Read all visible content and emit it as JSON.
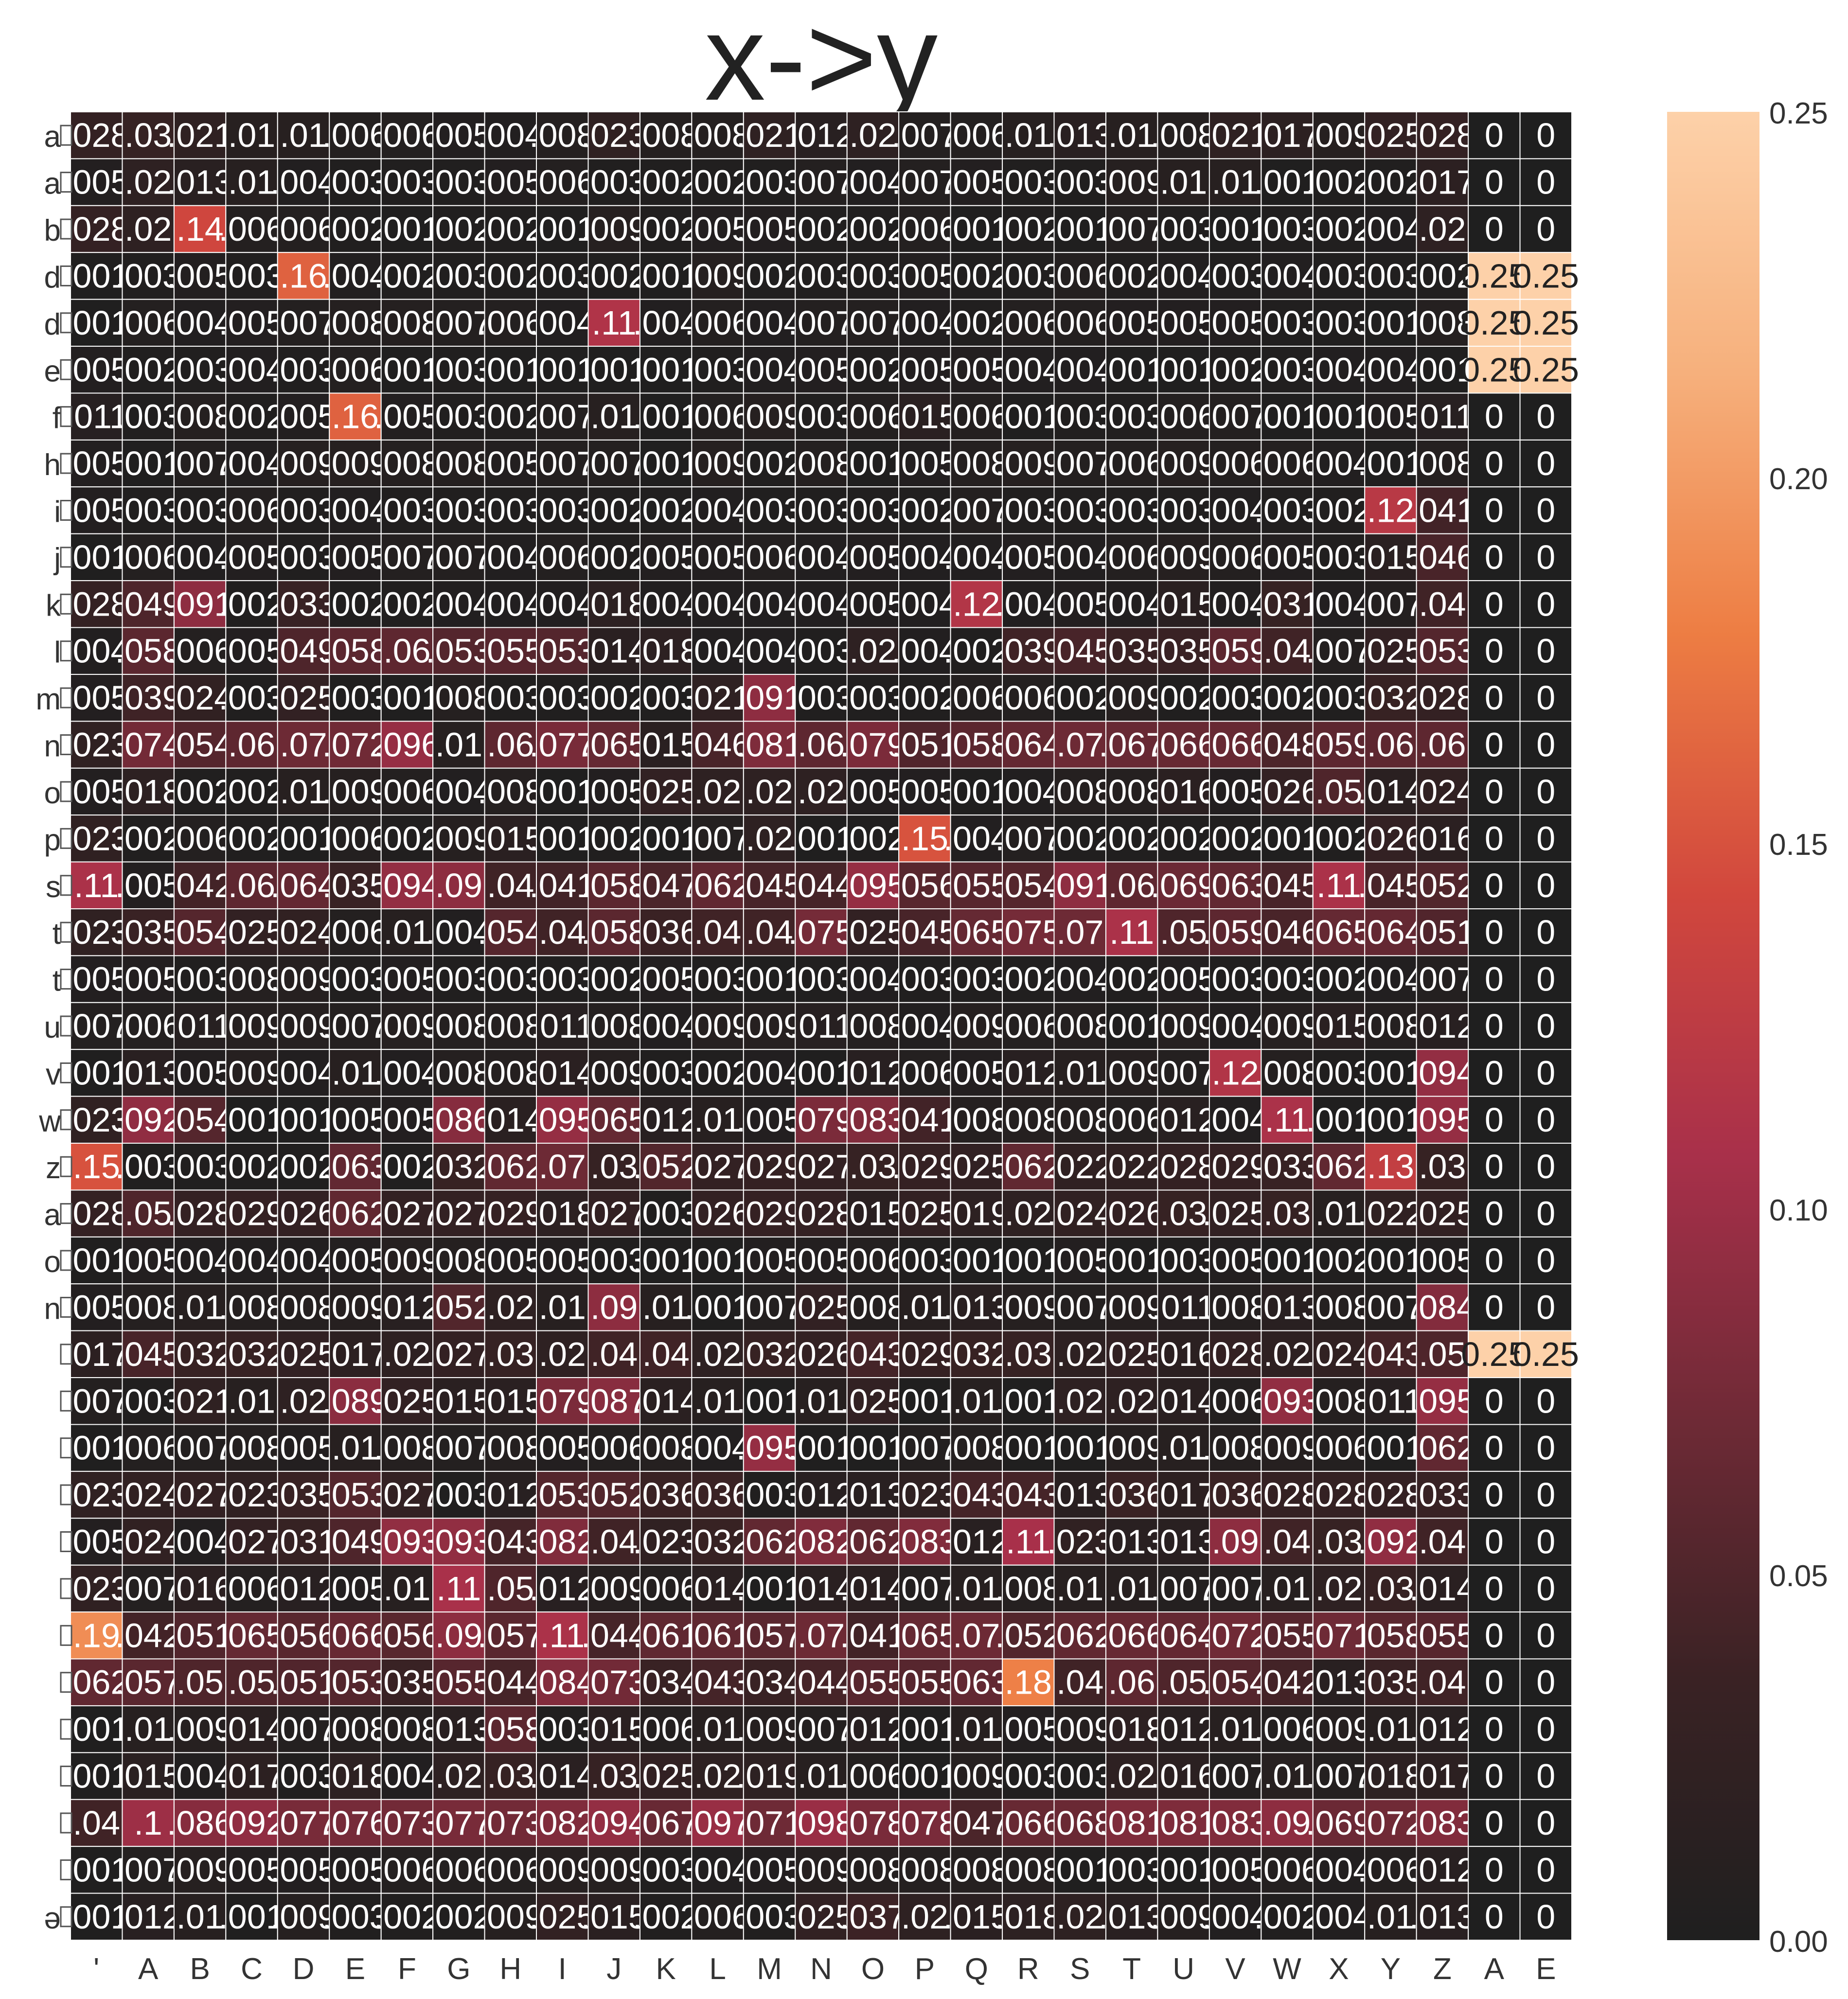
{
  "chart_data": {
    "type": "heatmap",
    "title": "x->y",
    "xlabel": "",
    "ylabel": "",
    "columns": [
      "'",
      "A",
      "B",
      "C",
      "D",
      "E",
      "F",
      "G",
      "H",
      "I",
      "J",
      "K",
      "L",
      "M",
      "N",
      "O",
      "P",
      "Q",
      "R",
      "S",
      "T",
      "U",
      "V",
      "W",
      "X",
      "Y",
      "Z",
      "A",
      "E"
    ],
    "rows": [
      "a",
      "a",
      "b",
      "d",
      "d",
      "e",
      "f",
      "h",
      "i",
      "j",
      "k",
      "l",
      "m",
      "n",
      "o",
      "p",
      "s",
      "t",
      "t",
      "u",
      "v",
      "w",
      "z",
      "a",
      "o",
      "n",
      "",
      "",
      "",
      "",
      "",
      "",
      "",
      "",
      "",
      "",
      "",
      "",
      "ə"
    ],
    "values": [
      [
        0.028,
        0.03,
        0.021,
        0.01,
        0.01,
        0.006,
        0.006,
        0.005,
        0.004,
        0.008,
        0.023,
        0.008,
        0.008,
        0.021,
        0.012,
        0.02,
        0.007,
        0.006,
        0.01,
        0.013,
        0.01,
        0.008,
        0.021,
        0.017,
        0.009,
        0.025,
        0.028,
        0,
        0
      ],
      [
        0.005,
        0.02,
        0.013,
        0.01,
        0.004,
        0.003,
        0.003,
        0.003,
        0.005,
        0.006,
        0.003,
        0.002,
        0.002,
        0.003,
        0.007,
        0.004,
        0.007,
        0.005,
        0.003,
        0.003,
        0.009,
        0.01,
        0.01,
        0.001,
        0.002,
        0.002,
        0.017,
        0,
        0
      ],
      [
        0.028,
        0.02,
        0.141,
        0.006,
        0.006,
        0.002,
        0.001,
        0.002,
        0.002,
        0.001,
        0.009,
        0.002,
        0.005,
        0.005,
        0.002,
        0.002,
        0.006,
        0.001,
        0.002,
        0.001,
        0.007,
        0.003,
        0.001,
        0.003,
        0.002,
        0.004,
        0.02,
        0,
        0
      ],
      [
        0.001,
        0.003,
        0.005,
        0.003,
        0.161,
        0.004,
        0.002,
        0.003,
        0.002,
        0.003,
        0.002,
        0.001,
        0.009,
        0.002,
        0.003,
        0.003,
        0.005,
        0.002,
        0.003,
        0.006,
        0.002,
        0.004,
        0.003,
        0.004,
        0.003,
        0.003,
        0.002,
        0.25,
        0.25
      ],
      [
        0.001,
        0.006,
        0.004,
        0.005,
        0.007,
        0.008,
        0.008,
        0.007,
        0.006,
        0.004,
        0.114,
        0.004,
        0.006,
        0.004,
        0.007,
        0.007,
        0.004,
        0.002,
        0.006,
        0.006,
        0.005,
        0.005,
        0.005,
        0.003,
        0.003,
        0.001,
        0.008,
        0.25,
        0.25
      ],
      [
        0.005,
        0.002,
        0.003,
        0.004,
        0.003,
        0.006,
        0.001,
        0.003,
        0.001,
        0.001,
        0.001,
        0.001,
        0.003,
        0.004,
        0.005,
        0.002,
        0.005,
        0.005,
        0.004,
        0.004,
        0.001,
        0.001,
        0.002,
        0.003,
        0.004,
        0.004,
        0.001,
        0.25,
        0.25
      ],
      [
        0.011,
        0.003,
        0.008,
        0.002,
        0.005,
        0.161,
        0.005,
        0.003,
        0.002,
        0.007,
        0.01,
        0.001,
        0.006,
        0.009,
        0.003,
        0.006,
        0.015,
        0.006,
        0.001,
        0.003,
        0.003,
        0.006,
        0.007,
        0.001,
        0.001,
        0.005,
        0.011,
        0,
        0
      ],
      [
        0.005,
        0.001,
        0.007,
        0.004,
        0.009,
        0.009,
        0.008,
        0.008,
        0.005,
        0.007,
        0.007,
        0.001,
        0.009,
        0.002,
        0.008,
        0.001,
        0.005,
        0.008,
        0.009,
        0.007,
        0.006,
        0.009,
        0.006,
        0.006,
        0.004,
        0.001,
        0.008,
        0,
        0
      ],
      [
        0.005,
        0.003,
        0.003,
        0.006,
        0.003,
        0.004,
        0.003,
        0.003,
        0.003,
        0.003,
        0.002,
        0.002,
        0.004,
        0.003,
        0.003,
        0.003,
        0.002,
        0.007,
        0.003,
        0.003,
        0.003,
        0.003,
        0.004,
        0.003,
        0.002,
        0.121,
        0.041,
        0,
        0
      ],
      [
        0.001,
        0.006,
        0.004,
        0.005,
        0.003,
        0.005,
        0.007,
        0.007,
        0.004,
        0.006,
        0.002,
        0.005,
        0.005,
        0.006,
        0.004,
        0.005,
        0.004,
        0.004,
        0.005,
        0.004,
        0.006,
        0.009,
        0.006,
        0.005,
        0.003,
        0.015,
        0.046,
        0,
        0
      ],
      [
        0.028,
        0.049,
        0.091,
        0.002,
        0.033,
        0.002,
        0.002,
        0.004,
        0.004,
        0.004,
        0.018,
        0.004,
        0.004,
        0.004,
        0.004,
        0.005,
        0.004,
        0.116,
        0.004,
        0.005,
        0.004,
        0.015,
        0.004,
        0.031,
        0.004,
        0.007,
        0.04,
        0,
        0
      ],
      [
        0.004,
        0.058,
        0.006,
        0.005,
        0.049,
        0.058,
        0.06,
        0.053,
        0.055,
        0.053,
        0.014,
        0.018,
        0.004,
        0.004,
        0.003,
        0.02,
        0.004,
        0.002,
        0.039,
        0.045,
        0.035,
        0.035,
        0.059,
        0.04,
        0.007,
        0.025,
        0.053,
        0,
        0
      ],
      [
        0.005,
        0.039,
        0.024,
        0.003,
        0.025,
        0.003,
        0.001,
        0.008,
        0.003,
        0.003,
        0.002,
        0.003,
        0.021,
        0.091,
        0.003,
        0.003,
        0.002,
        0.006,
        0.006,
        0.002,
        0.009,
        0.002,
        0.003,
        0.002,
        0.003,
        0.032,
        0.028,
        0,
        0
      ],
      [
        0.023,
        0.074,
        0.054,
        0.06,
        0.07,
        0.072,
        0.096,
        0.01,
        0.06,
        0.077,
        0.065,
        0.015,
        0.046,
        0.081,
        0.06,
        0.079,
        0.051,
        0.058,
        0.064,
        0.07,
        0.067,
        0.066,
        0.066,
        0.048,
        0.059,
        0.06,
        0.06,
        0,
        0
      ],
      [
        0.005,
        0.018,
        0.002,
        0.002,
        0.01,
        0.009,
        0.006,
        0.004,
        0.008,
        0.001,
        0.005,
        0.025,
        0.02,
        0.02,
        0.02,
        0.005,
        0.005,
        0.001,
        0.004,
        0.008,
        0.008,
        0.016,
        0.005,
        0.026,
        0.05,
        0.014,
        0.024,
        0,
        0
      ],
      [
        0.023,
        0.002,
        0.006,
        0.002,
        0.001,
        0.006,
        0.002,
        0.009,
        0.015,
        0.001,
        0.002,
        0.001,
        0.007,
        0.02,
        0.001,
        0.002,
        0.151,
        0.004,
        0.007,
        0.002,
        0.002,
        0.002,
        0.002,
        0.001,
        0.002,
        0.026,
        0.016,
        0,
        0
      ],
      [
        0.11,
        0.005,
        0.042,
        0.06,
        0.064,
        0.035,
        0.094,
        0.09,
        0.04,
        0.041,
        0.058,
        0.047,
        0.062,
        0.045,
        0.044,
        0.095,
        0.056,
        0.055,
        0.054,
        0.091,
        0.06,
        0.069,
        0.063,
        0.045,
        0.11,
        0.045,
        0.052,
        0,
        0
      ],
      [
        0.023,
        0.035,
        0.054,
        0.025,
        0.024,
        0.006,
        0.01,
        0.004,
        0.054,
        0.04,
        0.058,
        0.036,
        0.04,
        0.04,
        0.075,
        0.025,
        0.045,
        0.065,
        0.075,
        0.07,
        0.11,
        0.05,
        0.059,
        0.046,
        0.065,
        0.064,
        0.051,
        0,
        0
      ],
      [
        0.005,
        0.005,
        0.003,
        0.008,
        0.009,
        0.003,
        0.005,
        0.003,
        0.003,
        0.003,
        0.002,
        0.005,
        0.003,
        0.001,
        0.003,
        0.004,
        0.003,
        0.003,
        0.002,
        0.004,
        0.002,
        0.005,
        0.003,
        0.003,
        0.002,
        0.004,
        0.007,
        0,
        0
      ],
      [
        0.007,
        0.006,
        0.011,
        0.009,
        0.009,
        0.007,
        0.009,
        0.008,
        0.008,
        0.011,
        0.008,
        0.004,
        0.009,
        0.009,
        0.011,
        0.008,
        0.004,
        0.009,
        0.006,
        0.008,
        0.001,
        0.009,
        0.004,
        0.009,
        0.015,
        0.008,
        0.012,
        0,
        0
      ],
      [
        0.001,
        0.013,
        0.005,
        0.009,
        0.004,
        0.01,
        0.004,
        0.008,
        0.008,
        0.014,
        0.009,
        0.003,
        0.002,
        0.004,
        0.001,
        0.012,
        0.006,
        0.005,
        0.012,
        0.01,
        0.009,
        0.007,
        0.115,
        0.008,
        0.003,
        0.001,
        0.094,
        0,
        0
      ],
      [
        0.023,
        0.092,
        0.054,
        0.001,
        0.001,
        0.005,
        0.005,
        0.086,
        0.014,
        0.095,
        0.065,
        0.012,
        0.01,
        0.005,
        0.079,
        0.083,
        0.041,
        0.008,
        0.008,
        0.008,
        0.006,
        0.012,
        0.004,
        0.11,
        0.001,
        0.001,
        0.095,
        0,
        0
      ],
      [
        0.15,
        0.003,
        0.003,
        0.002,
        0.002,
        0.063,
        0.002,
        0.032,
        0.062,
        0.07,
        0.03,
        0.052,
        0.027,
        0.029,
        0.027,
        0.03,
        0.029,
        0.025,
        0.062,
        0.022,
        0.022,
        0.028,
        0.029,
        0.033,
        0.062,
        0.13,
        0.03,
        0,
        0
      ],
      [
        0.028,
        0.05,
        0.028,
        0.029,
        0.026,
        0.062,
        0.027,
        0.027,
        0.029,
        0.018,
        0.027,
        0.003,
        0.026,
        0.029,
        0.028,
        0.015,
        0.025,
        0.019,
        0.02,
        0.024,
        0.026,
        0.03,
        0.025,
        0.03,
        0.01,
        0.022,
        0.025,
        0,
        0
      ],
      [
        0.001,
        0.005,
        0.004,
        0.004,
        0.004,
        0.005,
        0.009,
        0.008,
        0.005,
        0.005,
        0.003,
        0.001,
        0.001,
        0.005,
        0.005,
        0.006,
        0.003,
        0.001,
        0.001,
        0.005,
        0.001,
        0.003,
        0.005,
        0.001,
        0.002,
        0.001,
        0.005,
        0,
        0
      ],
      [
        0.005,
        0.008,
        0.01,
        0.008,
        0.008,
        0.009,
        0.012,
        0.052,
        0.02,
        0.01,
        0.09,
        0.01,
        0.001,
        0.007,
        0.025,
        0.008,
        0.01,
        0.013,
        0.009,
        0.007,
        0.009,
        0.011,
        0.008,
        0.013,
        0.008,
        0.007,
        0.084,
        0,
        0
      ],
      [
        0.017,
        0.045,
        0.032,
        0.032,
        0.025,
        0.017,
        0.02,
        0.027,
        0.03,
        0.02,
        0.04,
        0.04,
        0.02,
        0.032,
        0.026,
        0.043,
        0.029,
        0.032,
        0.03,
        0.02,
        0.025,
        0.016,
        0.028,
        0.02,
        0.024,
        0.043,
        0.05,
        0.25,
        0.25
      ],
      [
        0.007,
        0.003,
        0.021,
        0.01,
        0.02,
        0.089,
        0.025,
        0.015,
        0.015,
        0.079,
        0.087,
        0.014,
        0.01,
        0.001,
        0.01,
        0.025,
        0.001,
        0.01,
        0.001,
        0.02,
        0.02,
        0.014,
        0.006,
        0.093,
        0.008,
        0.011,
        0.095,
        0,
        0
      ],
      [
        0.001,
        0.006,
        0.007,
        0.008,
        0.005,
        0.01,
        0.008,
        0.007,
        0.008,
        0.005,
        0.006,
        0.008,
        0.004,
        0.095,
        0.001,
        0.001,
        0.007,
        0.008,
        0.001,
        0.001,
        0.009,
        0.01,
        0.008,
        0.009,
        0.006,
        0.001,
        0.062,
        0,
        0
      ],
      [
        0.023,
        0.024,
        0.027,
        0.023,
        0.035,
        0.053,
        0.027,
        0.003,
        0.012,
        0.053,
        0.052,
        0.036,
        0.036,
        0.003,
        0.012,
        0.013,
        0.023,
        0.043,
        0.043,
        0.013,
        0.036,
        0.017,
        0.036,
        0.028,
        0.028,
        0.028,
        0.033,
        0,
        0
      ],
      [
        0.005,
        0.024,
        0.004,
        0.027,
        0.031,
        0.049,
        0.093,
        0.093,
        0.043,
        0.082,
        0.04,
        0.023,
        0.032,
        0.062,
        0.082,
        0.062,
        0.083,
        0.012,
        0.107,
        0.023,
        0.013,
        0.013,
        0.09,
        0.04,
        0.03,
        0.092,
        0.04,
        0,
        0
      ],
      [
        0.023,
        0.007,
        0.016,
        0.006,
        0.012,
        0.005,
        0.01,
        0.108,
        0.05,
        0.012,
        0.009,
        0.006,
        0.014,
        0.001,
        0.014,
        0.014,
        0.007,
        0.01,
        0.008,
        0.01,
        0.01,
        0.007,
        0.007,
        0.01,
        0.02,
        0.03,
        0.014,
        0,
        0
      ],
      [
        0.19,
        0.042,
        0.051,
        0.065,
        0.056,
        0.066,
        0.056,
        0.09,
        0.057,
        0.11,
        0.044,
        0.061,
        0.061,
        0.057,
        0.07,
        0.041,
        0.065,
        0.07,
        0.052,
        0.062,
        0.066,
        0.064,
        0.072,
        0.055,
        0.071,
        0.058,
        0.055,
        0,
        0
      ],
      [
        0.062,
        0.057,
        0.05,
        0.05,
        0.051,
        0.053,
        0.035,
        0.055,
        0.044,
        0.084,
        0.073,
        0.034,
        0.043,
        0.034,
        0.044,
        0.055,
        0.055,
        0.063,
        0.181,
        0.04,
        0.06,
        0.05,
        0.054,
        0.042,
        0.013,
        0.035,
        0.04,
        0,
        0
      ],
      [
        0.001,
        0.01,
        0.009,
        0.014,
        0.007,
        0.008,
        0.008,
        0.013,
        0.058,
        0.003,
        0.015,
        0.006,
        0.01,
        0.009,
        0.007,
        0.012,
        0.001,
        0.01,
        0.005,
        0.009,
        0.018,
        0.012,
        0.01,
        0.006,
        0.009,
        0.01,
        0.012,
        0,
        0
      ],
      [
        0.001,
        0.015,
        0.004,
        0.017,
        0.003,
        0.018,
        0.004,
        0.02,
        0.03,
        0.014,
        0.03,
        0.025,
        0.02,
        0.019,
        0.01,
        0.006,
        0.001,
        0.009,
        0.003,
        0.003,
        0.02,
        0.016,
        0.007,
        0.01,
        0.007,
        0.018,
        0.017,
        0,
        0
      ],
      [
        0.04,
        0.1,
        0.086,
        0.092,
        0.077,
        0.076,
        0.073,
        0.077,
        0.073,
        0.082,
        0.094,
        0.067,
        0.097,
        0.071,
        0.098,
        0.078,
        0.078,
        0.047,
        0.066,
        0.068,
        0.081,
        0.081,
        0.083,
        0.09,
        0.069,
        0.072,
        0.083,
        0,
        0
      ],
      [
        0.001,
        0.007,
        0.009,
        0.005,
        0.005,
        0.005,
        0.006,
        0.006,
        0.006,
        0.009,
        0.009,
        0.003,
        0.004,
        0.005,
        0.009,
        0.008,
        0.008,
        0.008,
        0.008,
        0.001,
        0.003,
        0.001,
        0.005,
        0.006,
        0.004,
        0.006,
        0.012,
        0,
        0
      ],
      [
        0.001,
        0.012,
        0.01,
        0.001,
        0.009,
        0.003,
        0.002,
        0.002,
        0.009,
        0.025,
        0.015,
        0.002,
        0.006,
        0.003,
        0.025,
        0.037,
        0.02,
        0.015,
        0.018,
        0.02,
        0.013,
        0.009,
        0.004,
        0.002,
        0.004,
        0.01,
        0.013,
        0,
        0
      ]
    ],
    "colorbar": {
      "min": 0.0,
      "max": 0.25,
      "ticks": [
        "0.00",
        "0.05",
        "0.10",
        "0.15",
        "0.20",
        "0.25"
      ],
      "colors": [
        "#1f1f1f",
        "#3a2224",
        "#6f2a36",
        "#a8304a",
        "#d1473d",
        "#ed7d43",
        "#f6b07c",
        "#fdd1a9"
      ]
    },
    "grid": true,
    "legend": "colorbar-right"
  }
}
